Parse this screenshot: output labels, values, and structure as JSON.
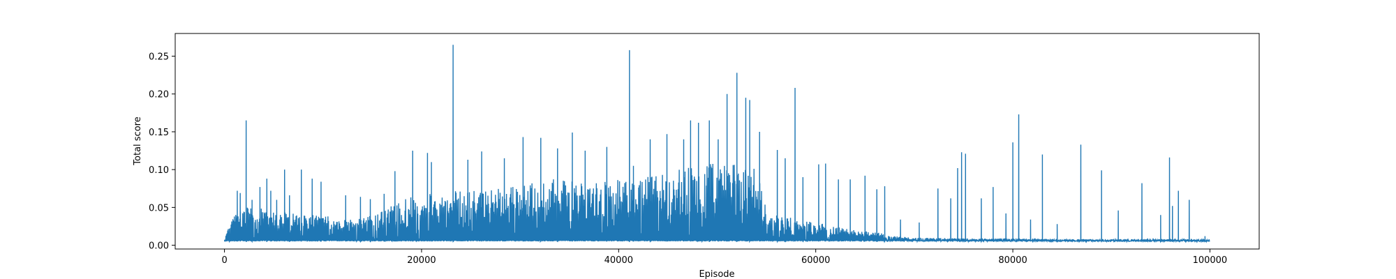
{
  "chart_data": {
    "type": "line",
    "title": "",
    "xlabel": "Episode",
    "ylabel": "Total score",
    "xlim": [
      -5000,
      105000
    ],
    "ylim": [
      -0.005,
      0.28
    ],
    "xticks": [
      0,
      20000,
      40000,
      60000,
      80000,
      100000
    ],
    "xtick_labels": [
      "0",
      "20000",
      "40000",
      "60000",
      "80000",
      "100000"
    ],
    "yticks": [
      0.0,
      0.05,
      0.1,
      0.15,
      0.2,
      0.25
    ],
    "ytick_labels": [
      "0.00",
      "0.05",
      "0.10",
      "0.15",
      "0.20",
      "0.25"
    ],
    "grid": false,
    "legend": "none",
    "series": [
      {
        "color": "#1f77b4",
        "baseline": 0.005,
        "envelope": {
          "x": [
            0,
            1000,
            2000,
            4000,
            6000,
            8000,
            10000,
            12000,
            14000,
            16000,
            18000,
            20000,
            22000,
            24000,
            26000,
            28000,
            30000,
            32000,
            34000,
            36000,
            38000,
            40000,
            42000,
            44000,
            46000,
            48000,
            50000,
            52000,
            54000,
            55000,
            56000,
            58000,
            60000,
            62000,
            64000,
            66000,
            68000,
            70000,
            75000,
            80000,
            85000,
            90000,
            95000,
            100000
          ],
          "y": [
            0.01,
            0.04,
            0.05,
            0.05,
            0.045,
            0.04,
            0.04,
            0.035,
            0.035,
            0.045,
            0.06,
            0.07,
            0.065,
            0.075,
            0.07,
            0.075,
            0.08,
            0.085,
            0.09,
            0.085,
            0.085,
            0.09,
            0.09,
            0.095,
            0.1,
            0.105,
            0.11,
            0.11,
            0.1,
            0.05,
            0.04,
            0.035,
            0.03,
            0.025,
            0.02,
            0.018,
            0.012,
            0.01,
            0.009,
            0.009,
            0.008,
            0.008,
            0.008,
            0.008
          ]
        },
        "spikes": [
          {
            "x": 500,
            "y": 0.022
          },
          {
            "x": 1000,
            "y": 0.038
          },
          {
            "x": 1300,
            "y": 0.072
          },
          {
            "x": 1600,
            "y": 0.069
          },
          {
            "x": 2200,
            "y": 0.165
          },
          {
            "x": 2800,
            "y": 0.06
          },
          {
            "x": 3600,
            "y": 0.077
          },
          {
            "x": 4300,
            "y": 0.088
          },
          {
            "x": 4700,
            "y": 0.072
          },
          {
            "x": 5300,
            "y": 0.06
          },
          {
            "x": 6100,
            "y": 0.1
          },
          {
            "x": 6600,
            "y": 0.066
          },
          {
            "x": 7800,
            "y": 0.1
          },
          {
            "x": 8900,
            "y": 0.088
          },
          {
            "x": 9800,
            "y": 0.084
          },
          {
            "x": 12300,
            "y": 0.066
          },
          {
            "x": 13800,
            "y": 0.064
          },
          {
            "x": 14800,
            "y": 0.061
          },
          {
            "x": 16200,
            "y": 0.068
          },
          {
            "x": 17300,
            "y": 0.098
          },
          {
            "x": 19100,
            "y": 0.125
          },
          {
            "x": 20600,
            "y": 0.122
          },
          {
            "x": 21000,
            "y": 0.11
          },
          {
            "x": 23200,
            "y": 0.265
          },
          {
            "x": 24700,
            "y": 0.113
          },
          {
            "x": 26100,
            "y": 0.124
          },
          {
            "x": 28400,
            "y": 0.115
          },
          {
            "x": 30300,
            "y": 0.143
          },
          {
            "x": 32100,
            "y": 0.142
          },
          {
            "x": 33800,
            "y": 0.128
          },
          {
            "x": 35300,
            "y": 0.149
          },
          {
            "x": 36600,
            "y": 0.125
          },
          {
            "x": 38800,
            "y": 0.13
          },
          {
            "x": 41100,
            "y": 0.258
          },
          {
            "x": 41500,
            "y": 0.105
          },
          {
            "x": 43200,
            "y": 0.14
          },
          {
            "x": 44900,
            "y": 0.147
          },
          {
            "x": 46600,
            "y": 0.14
          },
          {
            "x": 47300,
            "y": 0.165
          },
          {
            "x": 48100,
            "y": 0.162
          },
          {
            "x": 49200,
            "y": 0.165
          },
          {
            "x": 50100,
            "y": 0.14
          },
          {
            "x": 51000,
            "y": 0.2
          },
          {
            "x": 52000,
            "y": 0.228
          },
          {
            "x": 52900,
            "y": 0.195
          },
          {
            "x": 53300,
            "y": 0.192
          },
          {
            "x": 54300,
            "y": 0.15
          },
          {
            "x": 56100,
            "y": 0.126
          },
          {
            "x": 56900,
            "y": 0.115
          },
          {
            "x": 57900,
            "y": 0.208
          },
          {
            "x": 58700,
            "y": 0.09
          },
          {
            "x": 60300,
            "y": 0.107
          },
          {
            "x": 61000,
            "y": 0.108
          },
          {
            "x": 62300,
            "y": 0.087
          },
          {
            "x": 63500,
            "y": 0.087
          },
          {
            "x": 65000,
            "y": 0.092
          },
          {
            "x": 66200,
            "y": 0.074
          },
          {
            "x": 67000,
            "y": 0.078
          },
          {
            "x": 68600,
            "y": 0.034
          },
          {
            "x": 70500,
            "y": 0.03
          },
          {
            "x": 72400,
            "y": 0.075
          },
          {
            "x": 73700,
            "y": 0.062
          },
          {
            "x": 74400,
            "y": 0.102
          },
          {
            "x": 74800,
            "y": 0.123
          },
          {
            "x": 75200,
            "y": 0.121
          },
          {
            "x": 76800,
            "y": 0.062
          },
          {
            "x": 78000,
            "y": 0.077
          },
          {
            "x": 79300,
            "y": 0.042
          },
          {
            "x": 80000,
            "y": 0.136
          },
          {
            "x": 80600,
            "y": 0.173
          },
          {
            "x": 81800,
            "y": 0.034
          },
          {
            "x": 83000,
            "y": 0.12
          },
          {
            "x": 84500,
            "y": 0.028
          },
          {
            "x": 86900,
            "y": 0.133
          },
          {
            "x": 89000,
            "y": 0.099
          },
          {
            "x": 90700,
            "y": 0.046
          },
          {
            "x": 93100,
            "y": 0.082
          },
          {
            "x": 95000,
            "y": 0.04
          },
          {
            "x": 95900,
            "y": 0.116
          },
          {
            "x": 96200,
            "y": 0.052
          },
          {
            "x": 96800,
            "y": 0.072
          },
          {
            "x": 97900,
            "y": 0.06
          },
          {
            "x": 99500,
            "y": 0.012
          }
        ]
      }
    ]
  }
}
